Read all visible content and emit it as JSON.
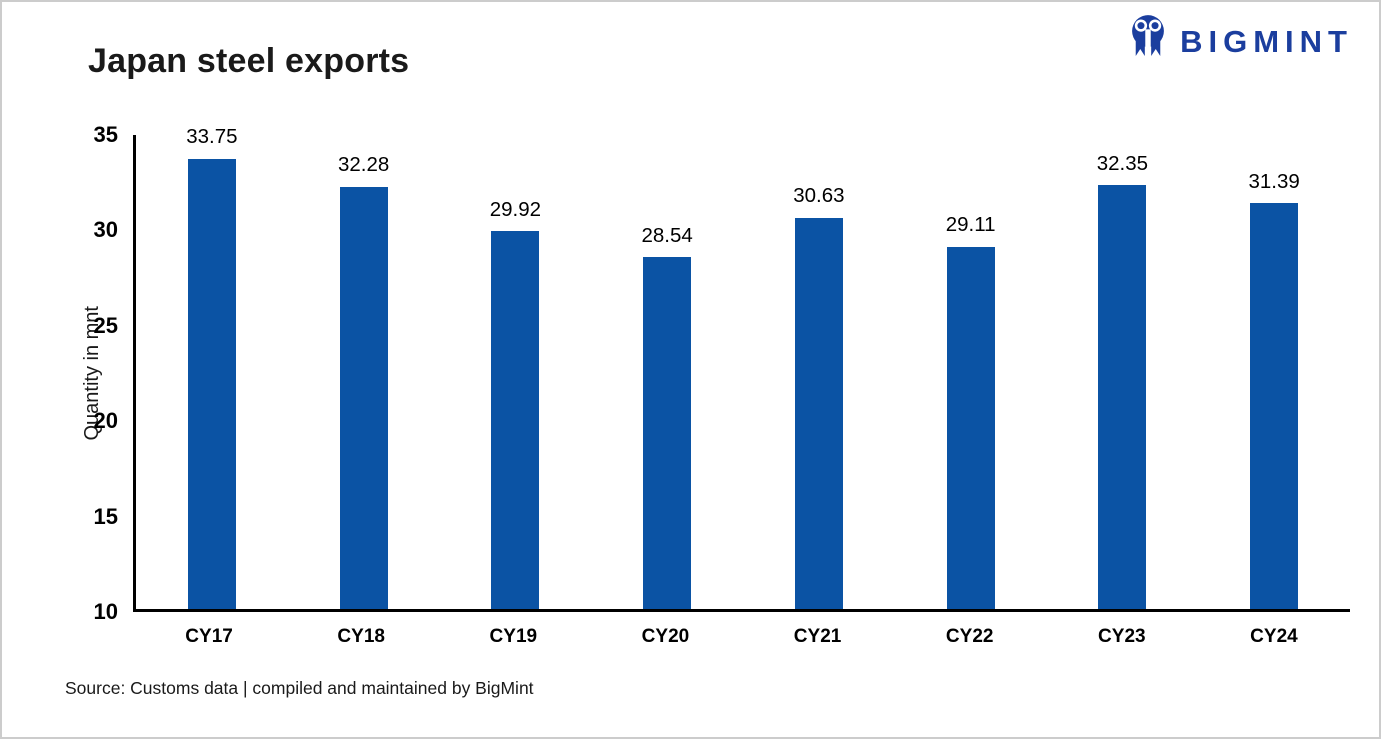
{
  "title": "Japan steel exports",
  "logo": {
    "brand": "BIGMINT"
  },
  "source_note": "Source: Customs data | compiled and maintained by BigMint",
  "colors": {
    "bar": "#0B53A4",
    "logo": "#1B3E9E",
    "axis": "#000000",
    "card_border": "#CCCCCC"
  },
  "chart_data": {
    "type": "bar",
    "title": "Japan steel exports",
    "categories": [
      "CY17",
      "CY18",
      "CY19",
      "CY20",
      "CY21",
      "CY22",
      "CY23",
      "CY24"
    ],
    "values": [
      33.75,
      32.28,
      29.92,
      28.54,
      30.63,
      29.11,
      32.35,
      31.39
    ],
    "xlabel": "",
    "ylabel": "Quantity in mnt",
    "ylim": [
      10,
      35
    ],
    "yticks": [
      10,
      15,
      20,
      25,
      30,
      35
    ],
    "grid": false,
    "legend": null,
    "data_labels": true,
    "bar_color": "#0B53A4"
  }
}
